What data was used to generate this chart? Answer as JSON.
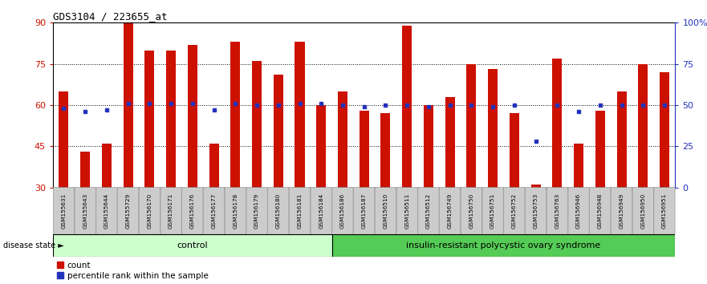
{
  "title": "GDS3104 / 223655_at",
  "samples": [
    "GSM155631",
    "GSM155643",
    "GSM155644",
    "GSM155729",
    "GSM156170",
    "GSM156171",
    "GSM156176",
    "GSM156177",
    "GSM156178",
    "GSM156179",
    "GSM156180",
    "GSM156181",
    "GSM156184",
    "GSM156186",
    "GSM156187",
    "GSM156510",
    "GSM156511",
    "GSM156512",
    "GSM156749",
    "GSM156750",
    "GSM156751",
    "GSM156752",
    "GSM156753",
    "GSM156763",
    "GSM156946",
    "GSM156948",
    "GSM156949",
    "GSM156950",
    "GSM156951"
  ],
  "counts": [
    65,
    43,
    46,
    90,
    80,
    80,
    82,
    46,
    83,
    76,
    71,
    83,
    60,
    65,
    58,
    57,
    89,
    60,
    63,
    75,
    73,
    57,
    31,
    77,
    46,
    58,
    65,
    75,
    72
  ],
  "percentile_ranks_pct": [
    48,
    46,
    47,
    51,
    51,
    51,
    51,
    47,
    51,
    50,
    50,
    51,
    51,
    50,
    49,
    50,
    50,
    49,
    50,
    50,
    49,
    50,
    28,
    50,
    46,
    50,
    50,
    50,
    50
  ],
  "control_count": 13,
  "disease_count": 16,
  "control_label": "control",
  "disease_label": "insulin-resistant polycystic ovary syndrome",
  "disease_state_label": "disease state",
  "bar_color": "#cc1100",
  "percentile_color": "#2233bb",
  "ymin": 30,
  "ymax": 90,
  "yticks_left": [
    30,
    45,
    60,
    75,
    90
  ],
  "yticks_right": [
    0,
    25,
    50,
    75,
    100
  ],
  "ytick_right_labels": [
    "0",
    "25",
    "50",
    "75",
    "100%"
  ],
  "hgrid_lines": [
    45,
    60,
    75
  ],
  "control_bg": "#ccffcc",
  "disease_bg": "#55cc55",
  "xticklabel_bg": "#cccccc",
  "legend_count_label": "count",
  "legend_percentile_label": "percentile rank within the sample",
  "bar_width": 0.45
}
